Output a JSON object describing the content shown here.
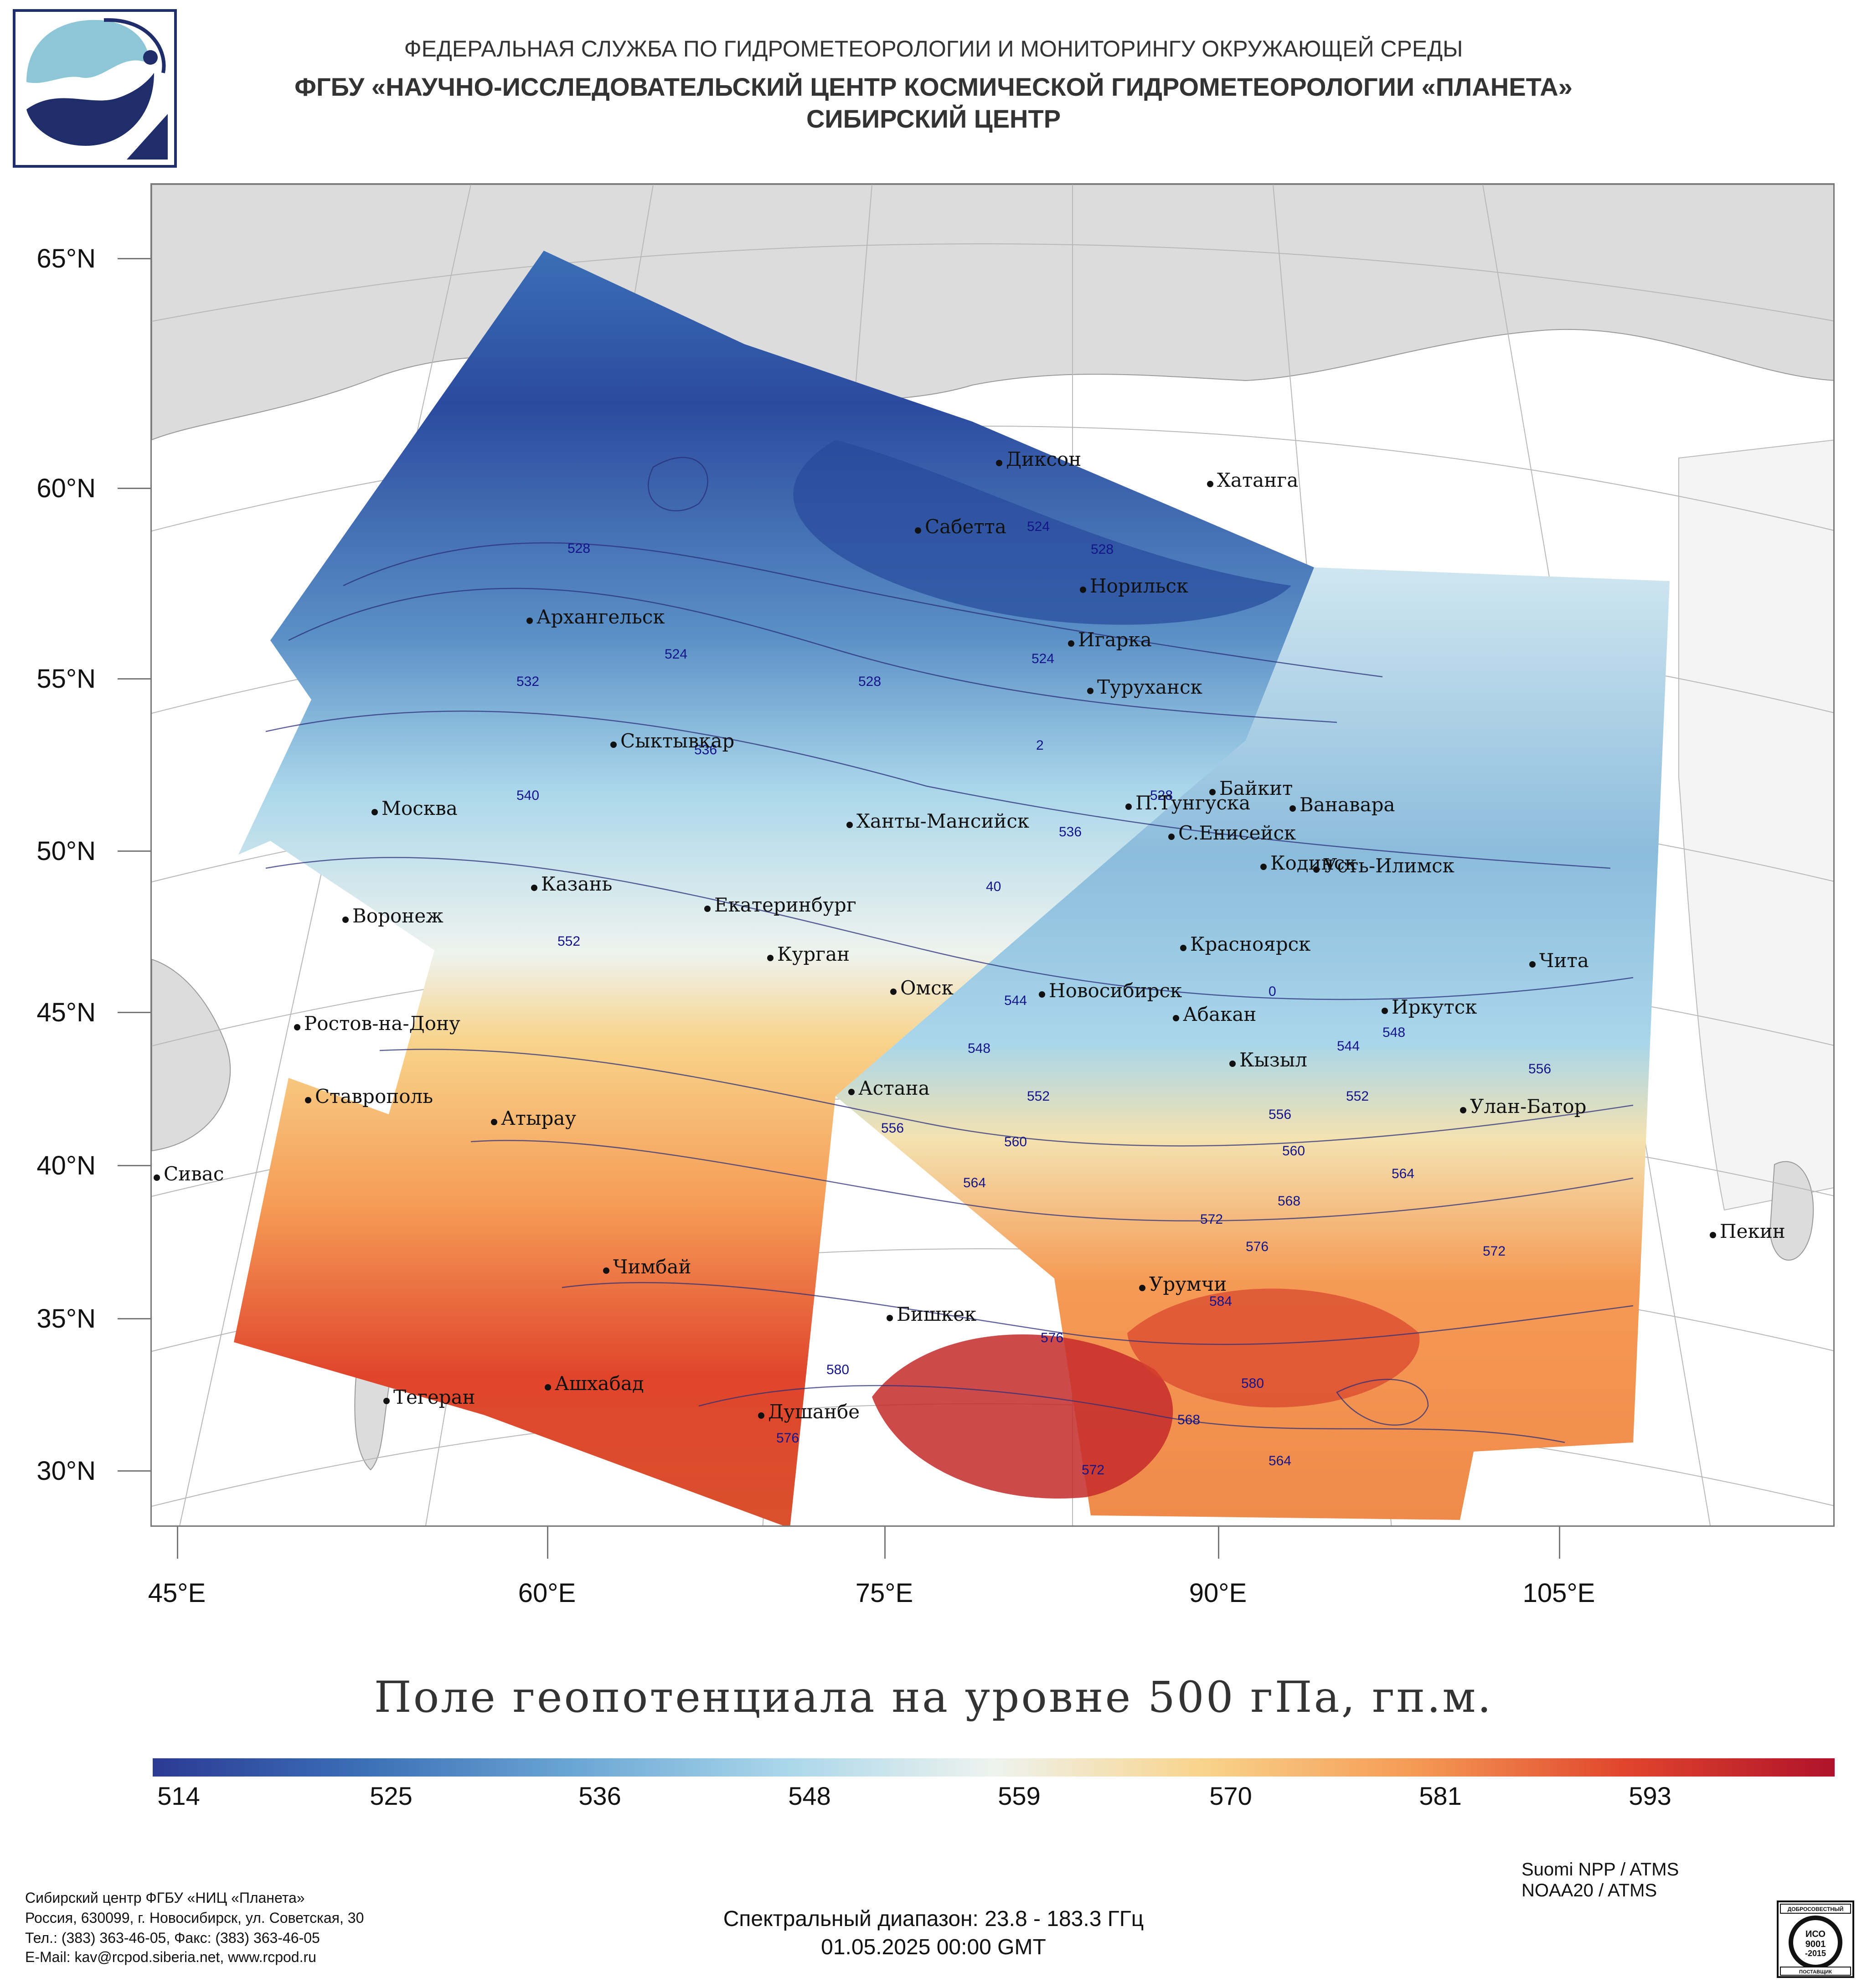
{
  "header": {
    "line1": "ФЕДЕРАЛЬНАЯ СЛУЖБА ПО ГИДРОМЕТЕОРОЛОГИИ И МОНИТОРИНГУ ОКРУЖАЮЩЕЙ СРЕДЫ",
    "line2": "ФГБУ «НАУЧНО-ИССЛЕДОВАТЕЛЬСКИЙ ЦЕНТР КОСМИЧЕСКОЙ ГИДРОМЕТЕОРОЛОГИИ «ПЛАНЕТА»",
    "line3": "СИБИРСКИЙ ЦЕНТР"
  },
  "map": {
    "lat_labels": [
      "65°N",
      "60°N",
      "55°N",
      "50°N",
      "45°N",
      "40°N",
      "35°N",
      "30°N"
    ],
    "lon_labels": [
      "45°E",
      "60°E",
      "75°E",
      "90°E",
      "105°E"
    ],
    "cities": [
      "Диксон",
      "Хатанга",
      "Сабетта",
      "Норильск",
      "Игарка",
      "Архангельск",
      "Туруханск",
      "Сыктывкар",
      "Байкит",
      "П.Тунгуска",
      "Ванавара",
      "Москва",
      "Ханты-Мансийск",
      "С.Енисейск",
      "Кодинск",
      "Усть-Илимск",
      "Казань",
      "Екатеринбург",
      "Воронеж",
      "Красноярск",
      "Курган",
      "Чита",
      "Омск",
      "Новосибирск",
      "Ростов-на-Дону",
      "Абакан",
      "Иркутск",
      "Кызыл",
      "Астана",
      "Ставрополь",
      "Атырау",
      "Улан-Батор",
      "Сивас",
      "Пекин",
      "Чимбай",
      "Урумчи",
      "Бишкек",
      "Ашхабад",
      "Тегеран",
      "Душанбе"
    ],
    "contour_labels": [
      "528",
      "524",
      "528",
      "532",
      "524",
      "524",
      "528",
      "536",
      "2",
      "540",
      "528",
      "536",
      "40",
      "552",
      "544",
      "0",
      "548",
      "544",
      "548",
      "552",
      "556",
      "552",
      "556",
      "556",
      "560",
      "560",
      "564",
      "564",
      "568",
      "572",
      "576",
      "572",
      "584",
      "576",
      "580",
      "580",
      "576",
      "568",
      "564",
      "572"
    ]
  },
  "title": "Поле геопотенциала на уровне 500 гПа, гп.м.",
  "colorbar": {
    "ticks": [
      "514",
      "525",
      "536",
      "548",
      "559",
      "570",
      "581",
      "593"
    ],
    "stops": [
      "#2b3a94",
      "#3b6fb6",
      "#6aa6d4",
      "#a9d6ea",
      "#eef3ee",
      "#f8d38a",
      "#f59a55",
      "#e0452c",
      "#b0122a"
    ]
  },
  "footer": {
    "org_lines": [
      "Сибирский центр ФГБУ «НИЦ «Планета»",
      "Россия, 630099, г. Новосибирск, ул. Советская, 30",
      "Тел.: (383) 363-46-05, Факс: (383) 363-46-05",
      "E-Mail: kav@rcpod.siberia.net, www.rcpod.ru"
    ],
    "satellites": [
      "Suomi NPP / ATMS",
      "NOAA20 / ATMS"
    ],
    "spectral": "Спектральный диапазон: 23.8 - 183.3 ГГц",
    "datetime": "01.05.2025 00:00 GMT",
    "iso_badge": {
      "top": "ДОБРОСОВЕСТНЫЙ",
      "mid1": "ИСО",
      "mid2": "9001",
      "mid3": "-2015",
      "bottom": "ПОСТАВЩИК"
    }
  },
  "colors": {
    "land": "#dcdcdc",
    "water": "#ffffff",
    "contour": "#2a2f7a",
    "contour_label": "#14148a"
  }
}
